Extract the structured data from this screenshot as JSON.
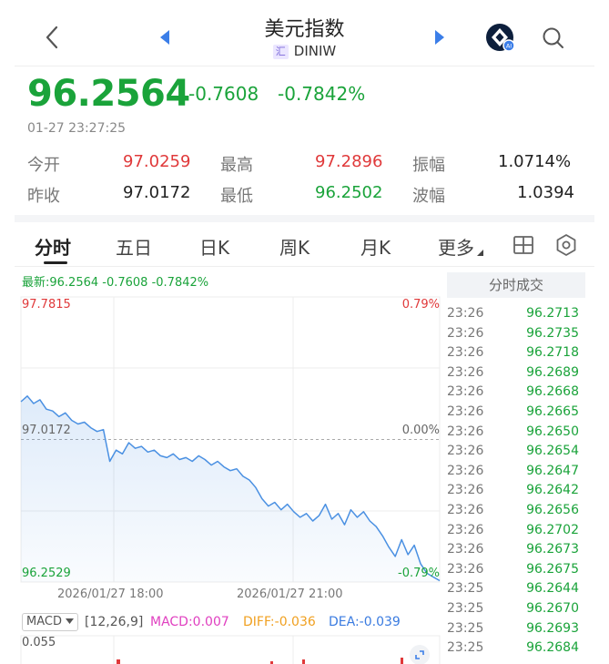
{
  "header": {
    "title": "美元指数",
    "badge": "汇",
    "code": "DINIW"
  },
  "quote": {
    "price": "96.2564",
    "change": "-0.7608",
    "change_pct": "-0.7842%",
    "time": "01-27 23:27:25"
  },
  "stats": [
    {
      "label": "今开",
      "value": "97.0259",
      "color": "red"
    },
    {
      "label": "最高",
      "value": "97.2896",
      "color": "red"
    },
    {
      "label": "振幅",
      "value": "1.0714%",
      "color": "dark"
    },
    {
      "label": "昨收",
      "value": "97.0172",
      "color": "dark"
    },
    {
      "label": "最低",
      "value": "96.2502",
      "color": "green"
    },
    {
      "label": "波幅",
      "value": "1.0394",
      "color": "dark"
    }
  ],
  "tabs": [
    "分时",
    "五日",
    "日K",
    "周K",
    "月K",
    "更多"
  ],
  "legend": "最新:96.2564  -0.7608  -0.7842%",
  "chart_data": {
    "type": "line",
    "y_max_label": "97.7815",
    "y_mid_label": "97.0172",
    "y_min_label": "96.2529",
    "pct_max_label": "0.79%",
    "pct_mid_label": "0.00%",
    "pct_min_label": "-0.79%",
    "ylim": [
      96.2529,
      97.7815
    ],
    "x_labels": [
      "2026/01/27 18:00",
      "2026/01/27 21:00"
    ],
    "series": [
      {
        "values": [
          97.22,
          97.25,
          97.21,
          97.23,
          97.18,
          97.17,
          97.14,
          97.16,
          97.12,
          97.1,
          97.11,
          97.08,
          97.06,
          97.07,
          96.9,
          96.96,
          96.94,
          97.0,
          96.97,
          96.98,
          96.95,
          96.96,
          96.93,
          96.92,
          96.94,
          96.91,
          96.92,
          96.9,
          96.93,
          96.91,
          96.88,
          96.9,
          96.87,
          96.85,
          96.86,
          96.82,
          96.8,
          96.76,
          96.7,
          96.66,
          96.68,
          96.64,
          96.67,
          96.63,
          96.6,
          96.62,
          96.58,
          96.61,
          96.67,
          96.59,
          96.62,
          96.56,
          96.64,
          96.6,
          96.63,
          96.58,
          96.55,
          96.5,
          96.44,
          96.39,
          96.48,
          96.4,
          96.45,
          96.35,
          96.3,
          96.28,
          96.26
        ]
      }
    ]
  },
  "macd": {
    "selector": "MACD",
    "params": "[12,26,9]",
    "macd": "MACD:0.007",
    "diff": "DIFF:-0.036",
    "dea": "DEA:-0.039",
    "axis_top": "0.055",
    "colors": {
      "macd": "#e040c0",
      "diff": "#f0a020",
      "dea": "#3a7be0"
    }
  },
  "trades": {
    "title": "分时成交",
    "rows": [
      {
        "time": "23:26",
        "price": "96.2713"
      },
      {
        "time": "23:26",
        "price": "96.2735"
      },
      {
        "time": "23:26",
        "price": "96.2718"
      },
      {
        "time": "23:26",
        "price": "96.2689"
      },
      {
        "time": "23:26",
        "price": "96.2668"
      },
      {
        "time": "23:26",
        "price": "96.2665"
      },
      {
        "time": "23:26",
        "price": "96.2650"
      },
      {
        "time": "23:26",
        "price": "96.2654"
      },
      {
        "time": "23:26",
        "price": "96.2647"
      },
      {
        "time": "23:26",
        "price": "96.2642"
      },
      {
        "time": "23:26",
        "price": "96.2656"
      },
      {
        "time": "23:26",
        "price": "96.2702"
      },
      {
        "time": "23:26",
        "price": "96.2673"
      },
      {
        "time": "23:26",
        "price": "96.2675"
      },
      {
        "time": "23:25",
        "price": "96.2644"
      },
      {
        "time": "23:25",
        "price": "96.2670"
      },
      {
        "time": "23:25",
        "price": "96.2693"
      },
      {
        "time": "23:25",
        "price": "96.2684"
      }
    ]
  },
  "colors": {
    "up": "#e0393a",
    "down": "#1aa33a",
    "line": "#4a90e2"
  }
}
